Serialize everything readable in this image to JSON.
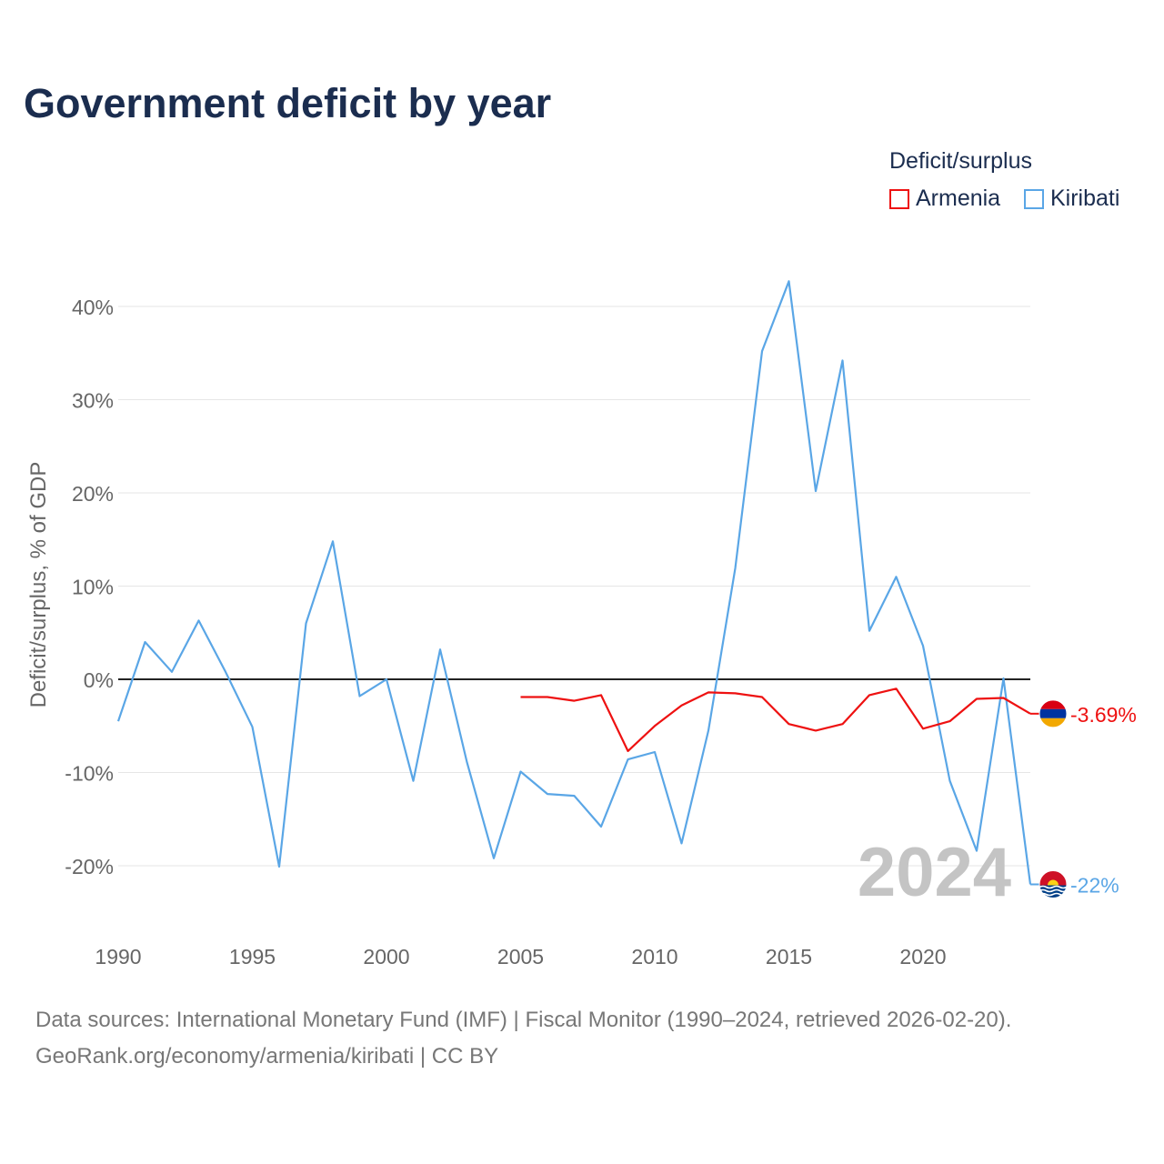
{
  "title": "Government deficit by year",
  "legend": {
    "title": "Deficit/surplus",
    "items": [
      {
        "name": "Armenia",
        "color": "#ee1111"
      },
      {
        "name": "Kiribati",
        "color": "#5aa6e6"
      }
    ]
  },
  "chart_data": {
    "type": "line",
    "ylabel": "Deficit/surplus, % of GDP",
    "xlabel": "",
    "xlim": [
      1990,
      2024
    ],
    "ylim": [
      -26,
      45
    ],
    "x_ticks": [
      1990,
      1995,
      2000,
      2005,
      2010,
      2015,
      2020
    ],
    "y_ticks": [
      -20,
      -10,
      0,
      10,
      20,
      30,
      40
    ],
    "y_tick_labels": [
      "-20%",
      "-10%",
      "0%",
      "10%",
      "20%",
      "30%",
      "40%"
    ],
    "year_label": "2024",
    "series": [
      {
        "name": "Armenia",
        "color": "#ee1111",
        "end_label": "-3.69%",
        "flag": "armenia-flag",
        "x": [
          2005,
          2006,
          2007,
          2008,
          2009,
          2010,
          2011,
          2012,
          2013,
          2014,
          2015,
          2016,
          2017,
          2018,
          2019,
          2020,
          2021,
          2022,
          2023,
          2024
        ],
        "values": [
          -1.9,
          -1.9,
          -2.3,
          -1.7,
          -7.7,
          -5.0,
          -2.8,
          -1.4,
          -1.5,
          -1.9,
          -4.8,
          -5.5,
          -4.8,
          -1.7,
          -1.0,
          -5.3,
          -4.5,
          -2.1,
          -2.0,
          -3.69
        ]
      },
      {
        "name": "Kiribati",
        "color": "#5aa6e6",
        "end_label": "-22%",
        "flag": "kiribati-flag",
        "x": [
          1990,
          1991,
          1992,
          1993,
          1994,
          1995,
          1996,
          1997,
          1998,
          1999,
          2000,
          2001,
          2002,
          2003,
          2004,
          2005,
          2006,
          2007,
          2008,
          2009,
          2010,
          2011,
          2012,
          2013,
          2014,
          2015,
          2016,
          2017,
          2018,
          2019,
          2020,
          2021,
          2022,
          2023,
          2024
        ],
        "values": [
          -4.5,
          4.0,
          0.8,
          6.3,
          0.8,
          -5.1,
          -20.1,
          6.0,
          14.8,
          -1.8,
          0.0,
          -10.9,
          3.2,
          -8.9,
          -19.2,
          -9.9,
          -12.3,
          -12.5,
          -15.8,
          -8.6,
          -7.8,
          -17.6,
          -5.5,
          11.9,
          35.2,
          42.7,
          20.2,
          34.2,
          5.2,
          11.0,
          3.6,
          -10.9,
          -18.4,
          0.1,
          -22.0
        ]
      }
    ]
  },
  "footer": {
    "line1": "Data sources: International Monetary Fund (IMF) | Fiscal Monitor (1990–2024, retrieved 2026-02-20).",
    "line2": "GeoRank.org/economy/armenia/kiribati | CC BY"
  }
}
